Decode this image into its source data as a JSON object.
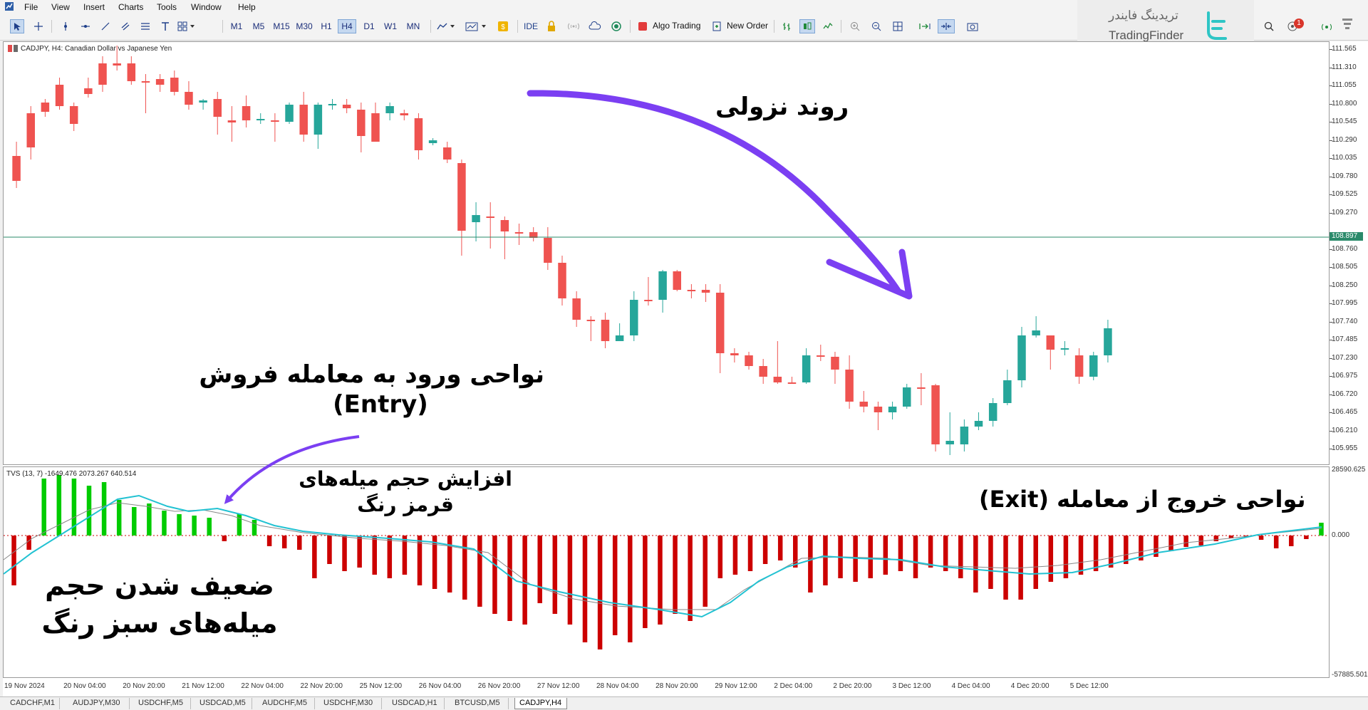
{
  "menu": [
    "File",
    "View",
    "Insert",
    "Charts",
    "Tools",
    "Window",
    "Help"
  ],
  "timeframes": [
    "M1",
    "M5",
    "M15",
    "M30",
    "H1",
    "H4",
    "D1",
    "W1",
    "MN"
  ],
  "active_timeframe": "H4",
  "toolbar": {
    "ide_label": "IDE",
    "algo_label": "Algo Trading",
    "neworder_label": "New Order"
  },
  "brand": {
    "fa": "تریدینگ فایندر",
    "en": "TradingFinder"
  },
  "notification_count": "1",
  "chart": {
    "symbol_title": "CADJPY, H4:  Canadian Dollar vs Japanese Yen",
    "current_price": "108.897",
    "price_labels": [
      "111.565",
      "111.310",
      "111.055",
      "110.800",
      "110.545",
      "110.290",
      "110.035",
      "109.780",
      "109.525",
      "109.270",
      "108.760",
      "108.505",
      "108.250",
      "107.995",
      "107.740",
      "107.485",
      "107.230",
      "106.975",
      "106.720",
      "106.465",
      "106.210",
      "105.955"
    ],
    "indicator_title": "TVS (13, 7) -1649.476 2073.267 640.514",
    "indicator_labels": [
      "28590.625",
      "0.000",
      "-57885.501"
    ],
    "time_labels": [
      "19 Nov 2024",
      "20 Nov 04:00",
      "20 Nov 20:00",
      "21 Nov 12:00",
      "22 Nov 04:00",
      "22 Nov 20:00",
      "25 Nov 12:00",
      "26 Nov 04:00",
      "26 Nov 20:00",
      "27 Nov 12:00",
      "28 Nov 04:00",
      "28 Nov 20:00",
      "29 Nov 12:00",
      "2 Dec 04:00",
      "2 Dec 20:00",
      "3 Dec 12:00",
      "4 Dec 04:00",
      "4 Dec 20:00",
      "5 Dec 12:00"
    ]
  },
  "annotations": {
    "downtrend": "روند نزولی",
    "entry_line1": "نواحی ورود به معامله فروش",
    "entry_line2": "(Entry)",
    "red_increase_line1": "افزایش حجم میله‌های",
    "red_increase_line2": "قرمز رنگ",
    "exit": "نواحی خروج از معامله (Exit)",
    "green_weak_line1": "ضعیف شدن حجم",
    "green_weak_line2": "میله‌های سبز رنگ"
  },
  "tabs": [
    "CADCHF,M1",
    "AUDJPY,M30",
    "USDCHF,M5",
    "USDCAD,M5",
    "AUDCHF,M5",
    "USDCHF,M30",
    "USDCAD,H1",
    "BTCUSD,M5",
    "CADJPY,H4"
  ],
  "active_tab": "CADJPY,H4",
  "colors": {
    "bull": "#26a69a",
    "bear": "#ef5350",
    "hist_pos": "#00cc00",
    "hist_neg": "#cc0000",
    "signal": "#22c2d2",
    "ma": "#888888",
    "arrow": "#7b3ff2",
    "hline": "#2a8a6a"
  }
}
